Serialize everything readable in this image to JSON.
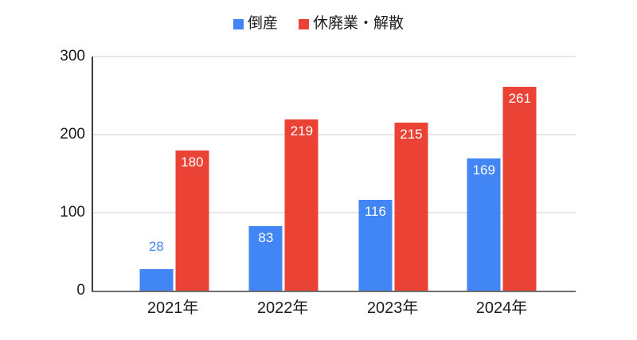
{
  "chart_data": {
    "type": "bar",
    "categories": [
      "2021年",
      "2022年",
      "2023年",
      "2024年"
    ],
    "series": [
      {
        "name": "倒産",
        "color": "#4285F4",
        "values": [
          28,
          83,
          116,
          169
        ]
      },
      {
        "name": "休廃業・解散",
        "color": "#EA4335",
        "values": [
          180,
          219,
          215,
          261
        ]
      }
    ],
    "ylim": [
      0,
      300
    ],
    "yticks": [
      0,
      100,
      200,
      300
    ],
    "grid": true,
    "legend_position": "top",
    "colors": {
      "gridline": "#e6e6e6",
      "axis_line": "#3c3c3c",
      "baseline": "#6e6e6e",
      "label_text": "#1c1c1c",
      "bar_value_text": "#ffffff"
    }
  }
}
